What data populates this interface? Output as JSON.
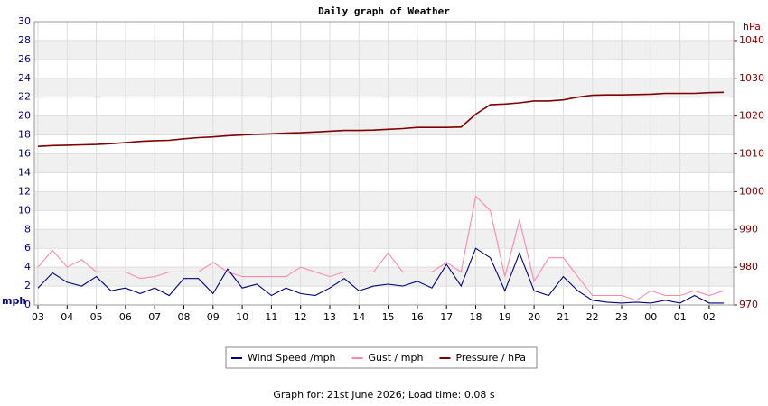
{
  "chart_data": {
    "type": "line",
    "title": "Daily graph of Weather",
    "y_label": "mph",
    "y2_label": "hPa",
    "categories": [
      "03",
      null,
      "04",
      null,
      "05",
      null,
      "06",
      null,
      "07",
      null,
      "08",
      null,
      "09",
      null,
      "10",
      null,
      "11",
      null,
      "12",
      null,
      "13",
      null,
      "14",
      null,
      "15",
      null,
      "16",
      null,
      "17",
      null,
      "18",
      null,
      "19",
      null,
      "20",
      null,
      "21",
      null,
      "22",
      null,
      "23",
      null,
      "00",
      null,
      "01",
      null,
      "02",
      null
    ],
    "series": [
      {
        "name": "Wind Speed /mph",
        "color": "#000080",
        "values": [
          1.8,
          3.4,
          2.4,
          2.0,
          3.0,
          1.5,
          1.8,
          1.2,
          1.8,
          1.0,
          2.8,
          2.8,
          1.2,
          3.8,
          1.8,
          2.2,
          1.0,
          1.8,
          1.2,
          1.0,
          1.8,
          2.8,
          1.5,
          2.0,
          2.2,
          2.0,
          2.5,
          1.8,
          4.3,
          2.0,
          6.0,
          5.0,
          1.5,
          5.5,
          1.5,
          1.0,
          3.0,
          1.5,
          0.5,
          0.3,
          0.2,
          0.3,
          0.2,
          0.5,
          0.2,
          1.0,
          0.2,
          0.2
        ]
      },
      {
        "name": "Gust / mph",
        "color": "#ff88aa",
        "values": [
          4,
          5.8,
          4,
          4.8,
          3.5,
          3.5,
          3.5,
          2.8,
          3,
          3.5,
          3.5,
          3.5,
          4.5,
          3.5,
          3,
          3,
          3,
          3,
          4,
          3.5,
          3,
          3.5,
          3.5,
          3.5,
          5.5,
          3.5,
          3.5,
          3.5,
          4.5,
          3.5,
          11.5,
          10,
          3,
          9,
          2.5,
          5,
          5,
          3,
          1,
          1,
          1,
          0.5,
          1.5,
          1,
          1,
          1.5,
          1,
          1.5
        ]
      },
      {
        "name": "Pressure / hPa",
        "color": "#800000",
        "axis": "y2",
        "values": [
          1012,
          1012.2,
          1012.3,
          1012.4,
          1012.5,
          1012.7,
          1013,
          1013.3,
          1013.5,
          1013.6,
          1014,
          1014.3,
          1014.5,
          1014.8,
          1015,
          1015.2,
          1015.3,
          1015.5,
          1015.6,
          1015.8,
          1016,
          1016.2,
          1016.2,
          1016.3,
          1016.5,
          1016.7,
          1017,
          1017,
          1017,
          1017.1,
          1020.5,
          1023,
          1023.2,
          1023.5,
          1024,
          1024,
          1024.3,
          1025,
          1025.5,
          1025.6,
          1025.6,
          1025.7,
          1025.8,
          1026,
          1026,
          1026,
          1026.2,
          1026.3
        ]
      }
    ],
    "ylim": [
      0,
      30
    ],
    "yticks": [
      0,
      2,
      4,
      6,
      8,
      10,
      12,
      14,
      16,
      18,
      20,
      22,
      24,
      26,
      28,
      30
    ],
    "y2lim": [
      970,
      1045
    ],
    "y2ticks": [
      970,
      980,
      990,
      1000,
      1010,
      1020,
      1030,
      1040
    ],
    "grid": true,
    "footer": "Graph for: 21st June 2026; Load time: 0.08 s"
  }
}
